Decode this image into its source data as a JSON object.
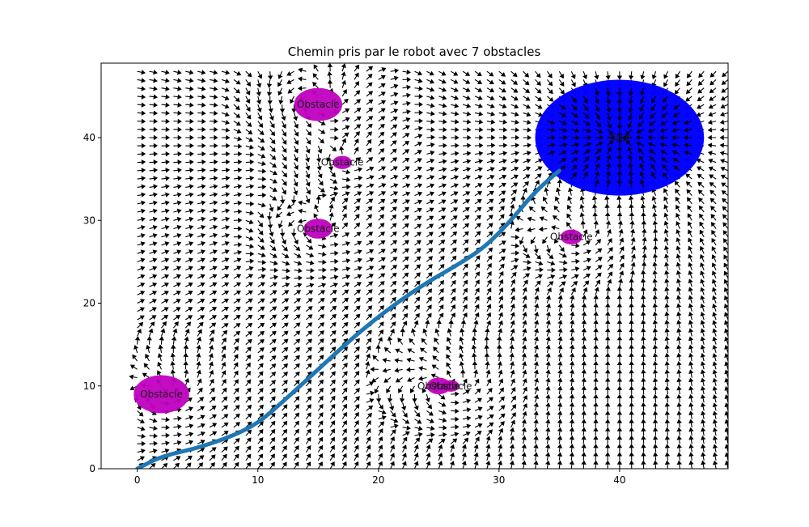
{
  "chart_data": {
    "type": "quiver",
    "title": "Chemin pris par le robot avec 7 obstacles",
    "xlabel": "",
    "ylabel": "",
    "xlim": [
      -3,
      49
    ],
    "ylim": [
      0,
      49
    ],
    "x_ticks": [
      0,
      10,
      20,
      30,
      40
    ],
    "y_ticks": [
      0,
      10,
      20,
      30,
      40
    ],
    "grid": false,
    "colors": {
      "path": "#1f77b4",
      "obstacle": "#c000c0",
      "goal": "#0000ff",
      "arrows": "#000000"
    },
    "goal": {
      "label": "Goal",
      "x": 40,
      "y": 40,
      "radius": 7
    },
    "obstacles": [
      {
        "label": "Obstacle",
        "x": 15,
        "y": 44,
        "radius": 2
      },
      {
        "label": "Obstacle",
        "x": 17,
        "y": 37,
        "radius": 0.8
      },
      {
        "label": "Obstacle",
        "x": 15,
        "y": 29,
        "radius": 1.2
      },
      {
        "label": "Obstacle",
        "x": 36,
        "y": 28,
        "radius": 0.9
      },
      {
        "label": "Obstacle",
        "x": 25,
        "y": 10,
        "radius": 1
      },
      {
        "label": "Obstacle",
        "x": 26,
        "y": 10,
        "radius": 0.7
      },
      {
        "label": "Obstacle",
        "x": 2,
        "y": 9,
        "radius": 2.3
      }
    ],
    "path": {
      "x": [
        0,
        2,
        5,
        8,
        10,
        12,
        15,
        18,
        21,
        24,
        27,
        29,
        31,
        33,
        35
      ],
      "y": [
        0,
        1.5,
        2.5,
        4,
        5.5,
        8,
        12,
        16,
        19.5,
        22.5,
        25,
        27,
        30,
        33.5,
        36
      ]
    },
    "field": {
      "x_start": 0,
      "x_end": 49,
      "x_step": 1,
      "y_start": 0,
      "y_end": 48,
      "y_step": 1
    }
  }
}
